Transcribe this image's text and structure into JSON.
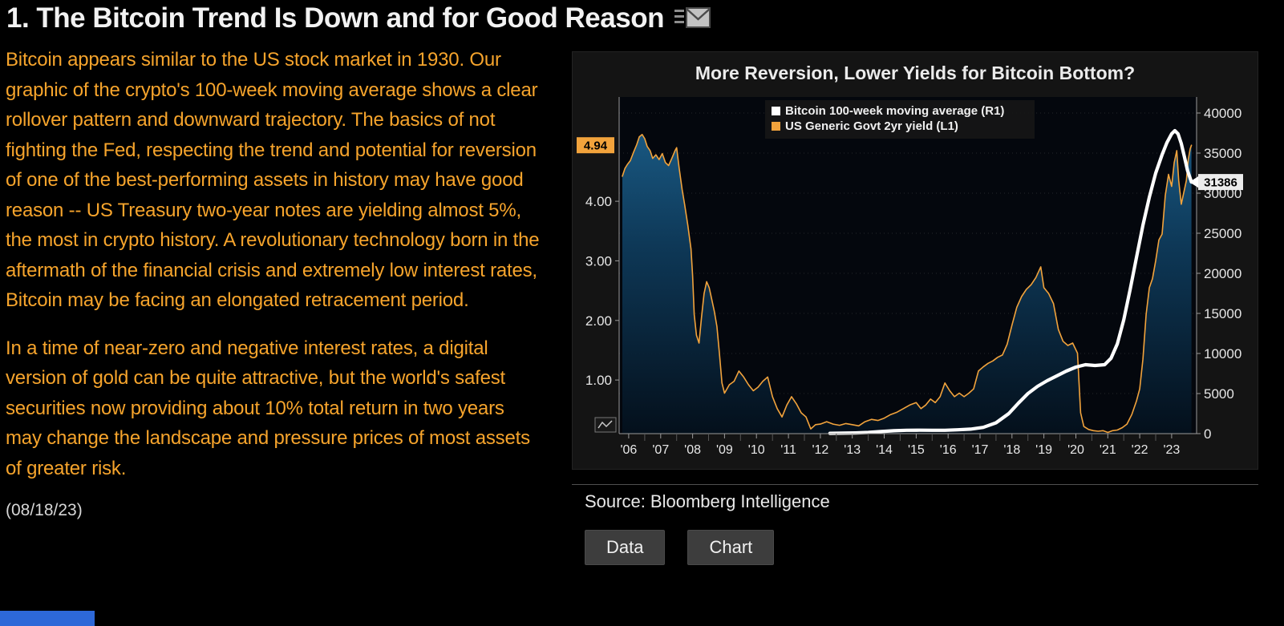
{
  "page": {
    "headline": "1. The Bitcoin Trend Is Down and for Good Reason",
    "date": "(08/18/23)"
  },
  "article": {
    "paragraph1": "Bitcoin appears similar to the US stock market in 1930. Our graphic of the crypto's 100-week moving average shows a clear rollover pattern and downward trajectory. The basics of not fighting the Fed, respecting the trend and potential for reversion of one of the best-performing assets in history may have good reason -- US Treasury two-year notes are yielding almost 5%, the most in crypto history. A revolutionary technology born in the aftermath of the financial crisis and extremely low interest rates, Bitcoin may be facing an elongated retracement period.",
    "paragraph2": "In a time of near-zero and negative interest rates, a digital version of gold can be quite attractive, but the world's safest securities now providing about 10% total return in two years may change the landscape and pressure prices of most assets of greater risk."
  },
  "panel": {
    "source_label": "Source: Bloomberg Intelligence",
    "buttons": [
      {
        "label": "Data"
      },
      {
        "label": "Chart"
      }
    ]
  },
  "colors": {
    "amber_text": "#f6a42c",
    "yield_line": "#f2a33c",
    "bitcoin_line": "#ffffff",
    "left_badge_bg": "#f2a33c",
    "right_badge_bg": "#ececec",
    "button_bg": "#3d3d3d",
    "blue_bar": "#2d68d8",
    "area_fill_top": "#1e6796",
    "area_fill_bottom": "#04101c"
  },
  "chart_data": {
    "type": "line",
    "title": "More Reversion, Lower Yields for Bitcoin Bottom?",
    "legend": [
      {
        "label": "Bitcoin 100-week moving average (R1)",
        "color": "#ffffff"
      },
      {
        "label": "US Generic Govt 2yr yield (L1)",
        "color": "#f2a33c"
      }
    ],
    "x_axis": {
      "min": 2005.7,
      "max": 2023.78,
      "tick_values": [
        2006,
        2007,
        2008,
        2009,
        2010,
        2011,
        2012,
        2013,
        2014,
        2015,
        2016,
        2017,
        2018,
        2019,
        2020,
        2021,
        2022,
        2023
      ],
      "tick_labels": [
        "'06",
        "'07",
        "'08",
        "'09",
        "'10",
        "'11",
        "'12",
        "'13",
        "'14",
        "'15",
        "'16",
        "'17",
        "'18",
        "'19",
        "'20",
        "'21",
        "'22",
        "'23"
      ]
    },
    "left_axis": {
      "min": 0.1,
      "max": 5.75,
      "ticks": [
        1,
        2,
        3,
        4
      ],
      "tick_labels": [
        "1.00",
        "2.00",
        "3.00",
        "4.00"
      ],
      "current": 4.94,
      "current_label": "4.94"
    },
    "right_axis": {
      "min": 0,
      "max": 42000,
      "ticks": [
        0,
        5000,
        10000,
        15000,
        20000,
        25000,
        30000,
        35000,
        40000
      ],
      "tick_labels": [
        "0",
        "5000",
        "10000",
        "15000",
        "20000",
        "25000",
        "30000",
        "35000",
        "40000"
      ],
      "current": 31386,
      "current_label": "31386"
    },
    "series": [
      {
        "name": "US Generic Govt 2yr yield (L1)",
        "axis": "left",
        "color": "#f2a33c",
        "fill": true,
        "width": 1.6,
        "points": [
          [
            2005.8,
            4.42
          ],
          [
            2005.88,
            4.55
          ],
          [
            2005.96,
            4.62
          ],
          [
            2006.05,
            4.68
          ],
          [
            2006.15,
            4.82
          ],
          [
            2006.25,
            4.95
          ],
          [
            2006.33,
            5.08
          ],
          [
            2006.42,
            5.12
          ],
          [
            2006.5,
            5.05
          ],
          [
            2006.58,
            4.92
          ],
          [
            2006.67,
            4.85
          ],
          [
            2006.75,
            4.72
          ],
          [
            2006.85,
            4.78
          ],
          [
            2006.95,
            4.7
          ],
          [
            2007.05,
            4.8
          ],
          [
            2007.15,
            4.65
          ],
          [
            2007.25,
            4.6
          ],
          [
            2007.35,
            4.72
          ],
          [
            2007.45,
            4.85
          ],
          [
            2007.5,
            4.9
          ],
          [
            2007.58,
            4.55
          ],
          [
            2007.67,
            4.2
          ],
          [
            2007.75,
            3.95
          ],
          [
            2007.85,
            3.6
          ],
          [
            2007.95,
            3.2
          ],
          [
            2008.0,
            2.75
          ],
          [
            2008.05,
            2.1
          ],
          [
            2008.12,
            1.75
          ],
          [
            2008.2,
            1.62
          ],
          [
            2008.28,
            2.05
          ],
          [
            2008.36,
            2.45
          ],
          [
            2008.44,
            2.65
          ],
          [
            2008.52,
            2.55
          ],
          [
            2008.6,
            2.35
          ],
          [
            2008.68,
            2.15
          ],
          [
            2008.76,
            1.9
          ],
          [
            2008.84,
            1.45
          ],
          [
            2008.92,
            0.95
          ],
          [
            2009.0,
            0.78
          ],
          [
            2009.15,
            0.92
          ],
          [
            2009.3,
            0.98
          ],
          [
            2009.45,
            1.15
          ],
          [
            2009.6,
            1.05
          ],
          [
            2009.75,
            0.92
          ],
          [
            2009.9,
            0.82
          ],
          [
            2010.05,
            0.88
          ],
          [
            2010.2,
            0.98
          ],
          [
            2010.35,
            1.05
          ],
          [
            2010.5,
            0.72
          ],
          [
            2010.65,
            0.52
          ],
          [
            2010.8,
            0.38
          ],
          [
            2010.95,
            0.58
          ],
          [
            2011.1,
            0.72
          ],
          [
            2011.25,
            0.6
          ],
          [
            2011.4,
            0.45
          ],
          [
            2011.55,
            0.38
          ],
          [
            2011.7,
            0.18
          ],
          [
            2011.85,
            0.25
          ],
          [
            2012.0,
            0.26
          ],
          [
            2012.2,
            0.3
          ],
          [
            2012.4,
            0.26
          ],
          [
            2012.6,
            0.24
          ],
          [
            2012.8,
            0.27
          ],
          [
            2013.0,
            0.25
          ],
          [
            2013.2,
            0.23
          ],
          [
            2013.4,
            0.3
          ],
          [
            2013.6,
            0.34
          ],
          [
            2013.8,
            0.32
          ],
          [
            2014.0,
            0.36
          ],
          [
            2014.2,
            0.42
          ],
          [
            2014.4,
            0.46
          ],
          [
            2014.6,
            0.52
          ],
          [
            2014.8,
            0.58
          ],
          [
            2015.0,
            0.62
          ],
          [
            2015.15,
            0.52
          ],
          [
            2015.3,
            0.58
          ],
          [
            2015.45,
            0.68
          ],
          [
            2015.6,
            0.62
          ],
          [
            2015.75,
            0.72
          ],
          [
            2015.9,
            0.95
          ],
          [
            2016.05,
            0.82
          ],
          [
            2016.2,
            0.72
          ],
          [
            2016.35,
            0.78
          ],
          [
            2016.5,
            0.72
          ],
          [
            2016.65,
            0.78
          ],
          [
            2016.8,
            0.85
          ],
          [
            2016.95,
            1.15
          ],
          [
            2017.1,
            1.22
          ],
          [
            2017.25,
            1.28
          ],
          [
            2017.4,
            1.32
          ],
          [
            2017.55,
            1.38
          ],
          [
            2017.7,
            1.42
          ],
          [
            2017.85,
            1.6
          ],
          [
            2018.0,
            1.92
          ],
          [
            2018.15,
            2.22
          ],
          [
            2018.3,
            2.4
          ],
          [
            2018.45,
            2.52
          ],
          [
            2018.6,
            2.6
          ],
          [
            2018.75,
            2.72
          ],
          [
            2018.9,
            2.9
          ],
          [
            2019.0,
            2.55
          ],
          [
            2019.15,
            2.45
          ],
          [
            2019.3,
            2.28
          ],
          [
            2019.45,
            1.85
          ],
          [
            2019.6,
            1.65
          ],
          [
            2019.75,
            1.58
          ],
          [
            2019.9,
            1.62
          ],
          [
            2020.05,
            1.45
          ],
          [
            2020.15,
            0.45
          ],
          [
            2020.25,
            0.22
          ],
          [
            2020.4,
            0.17
          ],
          [
            2020.55,
            0.15
          ],
          [
            2020.7,
            0.14
          ],
          [
            2020.85,
            0.15
          ],
          [
            2021.0,
            0.12
          ],
          [
            2021.15,
            0.15
          ],
          [
            2021.3,
            0.16
          ],
          [
            2021.45,
            0.2
          ],
          [
            2021.6,
            0.26
          ],
          [
            2021.75,
            0.42
          ],
          [
            2021.9,
            0.65
          ],
          [
            2022.0,
            0.85
          ],
          [
            2022.1,
            1.35
          ],
          [
            2022.2,
            2.1
          ],
          [
            2022.3,
            2.55
          ],
          [
            2022.4,
            2.7
          ],
          [
            2022.5,
            3.0
          ],
          [
            2022.6,
            3.35
          ],
          [
            2022.7,
            3.45
          ],
          [
            2022.8,
            4.1
          ],
          [
            2022.9,
            4.45
          ],
          [
            2023.0,
            4.25
          ],
          [
            2023.08,
            4.65
          ],
          [
            2023.16,
            4.85
          ],
          [
            2023.22,
            4.35
          ],
          [
            2023.3,
            3.95
          ],
          [
            2023.38,
            4.15
          ],
          [
            2023.46,
            4.35
          ],
          [
            2023.52,
            4.7
          ],
          [
            2023.58,
            4.88
          ],
          [
            2023.62,
            4.94
          ]
        ]
      },
      {
        "name": "Bitcoin 100-week moving average (R1)",
        "axis": "right",
        "color": "#ffffff",
        "fill": false,
        "width": 4.2,
        "points": [
          [
            2012.3,
            40
          ],
          [
            2012.7,
            60
          ],
          [
            2013.1,
            90
          ],
          [
            2013.5,
            150
          ],
          [
            2013.9,
            260
          ],
          [
            2014.3,
            360
          ],
          [
            2014.7,
            420
          ],
          [
            2015.1,
            430
          ],
          [
            2015.5,
            415
          ],
          [
            2015.9,
            425
          ],
          [
            2016.3,
            480
          ],
          [
            2016.7,
            560
          ],
          [
            2017.1,
            780
          ],
          [
            2017.5,
            1350
          ],
          [
            2017.9,
            2500
          ],
          [
            2018.2,
            3800
          ],
          [
            2018.5,
            5000
          ],
          [
            2018.8,
            5900
          ],
          [
            2019.1,
            6600
          ],
          [
            2019.4,
            7200
          ],
          [
            2019.7,
            7800
          ],
          [
            2020.0,
            8300
          ],
          [
            2020.3,
            8600
          ],
          [
            2020.6,
            8500
          ],
          [
            2020.9,
            8600
          ],
          [
            2021.1,
            9400
          ],
          [
            2021.3,
            11200
          ],
          [
            2021.5,
            14200
          ],
          [
            2021.7,
            18000
          ],
          [
            2021.9,
            22000
          ],
          [
            2022.1,
            26000
          ],
          [
            2022.3,
            29500
          ],
          [
            2022.5,
            32500
          ],
          [
            2022.7,
            34800
          ],
          [
            2022.85,
            36300
          ],
          [
            2023.0,
            37400
          ],
          [
            2023.1,
            37800
          ],
          [
            2023.2,
            37400
          ],
          [
            2023.3,
            36200
          ],
          [
            2023.4,
            34500
          ],
          [
            2023.5,
            32800
          ],
          [
            2023.62,
            31386
          ]
        ]
      }
    ]
  }
}
